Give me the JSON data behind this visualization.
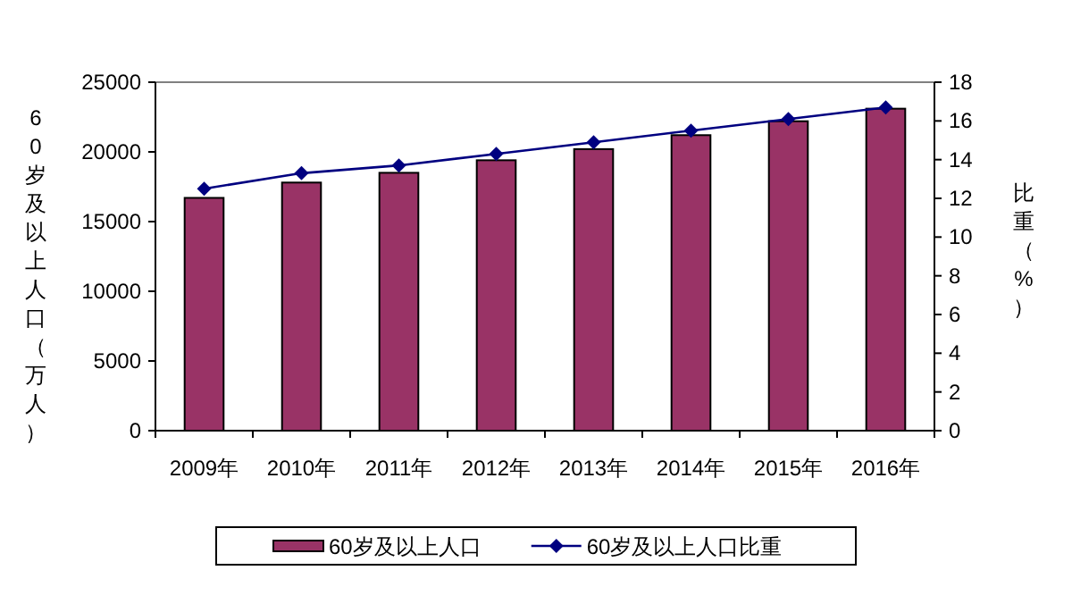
{
  "chart_data": {
    "type": "bar",
    "ylabel": "60岁及以上人口（万人）",
    "y2label": "比重（%）",
    "categories": [
      "2009年",
      "2010年",
      "2011年",
      "2012年",
      "2013年",
      "2014年",
      "2015年",
      "2016年"
    ],
    "series": [
      {
        "name": "60岁及以上人口",
        "color": "#993366",
        "values": [
          16700,
          17800,
          18500,
          19400,
          20200,
          21200,
          22200,
          23100
        ]
      },
      {
        "name": "60岁及以上人口比重",
        "type": "line",
        "axis": "y2",
        "color": "#000080",
        "marker": "diamond",
        "values": [
          12.5,
          13.3,
          13.7,
          14.3,
          14.9,
          15.5,
          16.1,
          16.7
        ]
      }
    ],
    "ylim": [
      0,
      25000
    ],
    "yticks": [
      0,
      5000,
      10000,
      15000,
      20000,
      25000
    ],
    "y2lim": [
      0,
      18
    ],
    "y2ticks": [
      0,
      2,
      4,
      6,
      8,
      10,
      12,
      14,
      16,
      18
    ],
    "legend": "bottom",
    "grid": false
  }
}
